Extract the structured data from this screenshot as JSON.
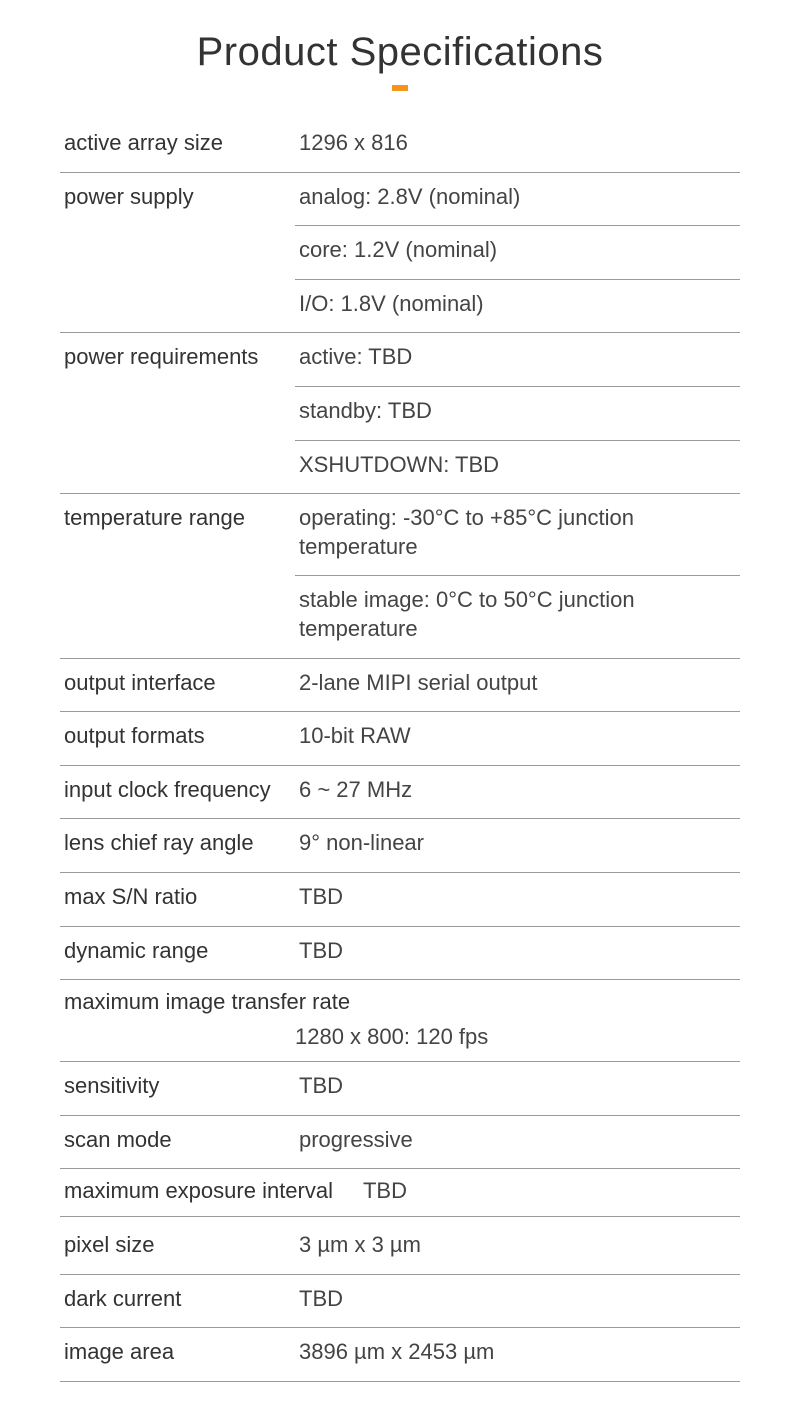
{
  "title": "Product Specifications",
  "accent_color": "#f7941d",
  "border_color": "#9a9a9a",
  "text_color": "#333333",
  "value_color": "#444444",
  "background_color": "#ffffff",
  "title_fontsize": 40,
  "label_fontsize": 22,
  "value_fontsize": 22,
  "specs": {
    "active_array_size": {
      "label": "active array size",
      "values": [
        "1296 x 816"
      ]
    },
    "power_supply": {
      "label": "power supply",
      "values": [
        "analog: 2.8V (nominal)",
        "core: 1.2V (nominal)",
        "I/O: 1.8V (nominal)"
      ]
    },
    "power_requirements": {
      "label": "power requirements",
      "values": [
        "active: TBD",
        "standby: TBD",
        "XSHUTDOWN: TBD"
      ]
    },
    "temperature_range": {
      "label": "temperature range",
      "values": [
        "operating: -30°C to +85°C junction temperature",
        "stable image: 0°C to 50°C junction temperature"
      ]
    },
    "output_interface": {
      "label": "output interface",
      "values": [
        "2-lane MIPI serial output"
      ]
    },
    "output_formats": {
      "label": "output formats",
      "values": [
        "10-bit RAW"
      ]
    },
    "input_clock_frequency": {
      "label": "input clock frequency",
      "values": [
        "6 ~ 27 MHz"
      ]
    },
    "lens_chief_ray_angle": {
      "label": "lens chief ray angle",
      "values": [
        "9° non-linear"
      ]
    },
    "max_sn_ratio": {
      "label": "max S/N ratio",
      "values": [
        "TBD"
      ]
    },
    "dynamic_range": {
      "label": "dynamic range",
      "values": [
        "TBD"
      ]
    },
    "maximum_image_transfer_rate": {
      "label": "maximum image transfer rate",
      "values": [
        "1280 x 800: 120 fps"
      ]
    },
    "sensitivity": {
      "label": "sensitivity",
      "values": [
        "TBD"
      ]
    },
    "scan_mode": {
      "label": "scan mode",
      "values": [
        "progressive"
      ]
    },
    "maximum_exposure_interval": {
      "label": "maximum exposure interval",
      "values": [
        "TBD"
      ]
    },
    "pixel_size": {
      "label": "pixel size",
      "values": [
        "3 µm x 3 µm"
      ]
    },
    "dark_current": {
      "label": "dark current",
      "values": [
        "TBD"
      ]
    },
    "image_area": {
      "label": "image area",
      "values": [
        "3896 µm x 2453 µm"
      ]
    }
  }
}
